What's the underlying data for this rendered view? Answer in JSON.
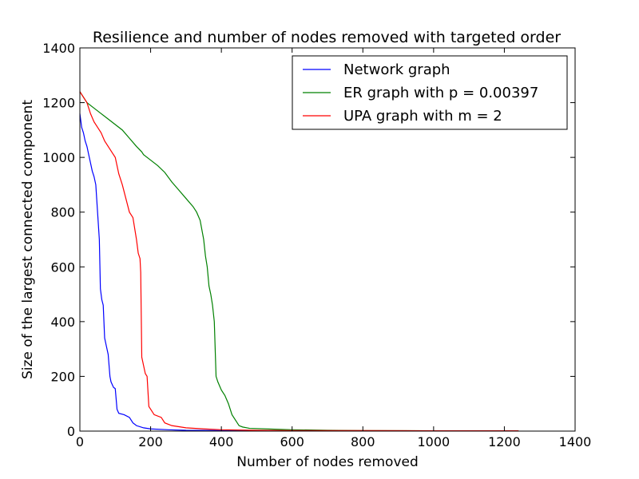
{
  "chart_data": {
    "type": "line",
    "title": "Resilience and number of nodes removed with targeted order",
    "xlabel": "Number of nodes removed",
    "ylabel": "Size of the largest connected component",
    "xlim": [
      0,
      1400
    ],
    "ylim": [
      0,
      1400
    ],
    "xticks": [
      0,
      200,
      400,
      600,
      800,
      1000,
      1200,
      1400
    ],
    "yticks": [
      0,
      200,
      400,
      600,
      800,
      1000,
      1200,
      1400
    ],
    "xtick_labels": [
      "0",
      "200",
      "400",
      "600",
      "800",
      "1000",
      "1200",
      "1400"
    ],
    "ytick_labels": [
      "0",
      "200",
      "400",
      "600",
      "800",
      "1000",
      "1200",
      "1400"
    ],
    "grid": false,
    "legend_position": "top-right",
    "series": [
      {
        "name": "Network graph",
        "color": "#0000ff",
        "points": [
          [
            0,
            1160
          ],
          [
            2,
            1140
          ],
          [
            5,
            1110
          ],
          [
            10,
            1090
          ],
          [
            15,
            1060
          ],
          [
            20,
            1040
          ],
          [
            25,
            1010
          ],
          [
            30,
            980
          ],
          [
            35,
            950
          ],
          [
            40,
            930
          ],
          [
            45,
            900
          ],
          [
            50,
            800
          ],
          [
            55,
            700
          ],
          [
            58,
            520
          ],
          [
            62,
            480
          ],
          [
            66,
            460
          ],
          [
            68,
            400
          ],
          [
            70,
            340
          ],
          [
            75,
            310
          ],
          [
            80,
            280
          ],
          [
            85,
            200
          ],
          [
            88,
            180
          ],
          [
            95,
            160
          ],
          [
            100,
            155
          ],
          [
            105,
            80
          ],
          [
            110,
            65
          ],
          [
            125,
            60
          ],
          [
            140,
            50
          ],
          [
            150,
            30
          ],
          [
            160,
            20
          ],
          [
            180,
            12
          ],
          [
            200,
            8
          ],
          [
            250,
            5
          ],
          [
            300,
            3
          ],
          [
            400,
            2
          ],
          [
            600,
            1
          ],
          [
            800,
            1
          ],
          [
            1000,
            1
          ],
          [
            1240,
            1
          ]
        ]
      },
      {
        "name": "ER graph with p = 0.00397",
        "color": "#008000",
        "points": [
          [
            0,
            1240
          ],
          [
            10,
            1220
          ],
          [
            20,
            1200
          ],
          [
            40,
            1180
          ],
          [
            60,
            1160
          ],
          [
            80,
            1140
          ],
          [
            100,
            1120
          ],
          [
            120,
            1100
          ],
          [
            140,
            1070
          ],
          [
            160,
            1040
          ],
          [
            175,
            1020
          ],
          [
            180,
            1010
          ],
          [
            200,
            990
          ],
          [
            220,
            970
          ],
          [
            240,
            945
          ],
          [
            260,
            910
          ],
          [
            280,
            880
          ],
          [
            300,
            850
          ],
          [
            320,
            820
          ],
          [
            330,
            800
          ],
          [
            340,
            770
          ],
          [
            350,
            700
          ],
          [
            355,
            640
          ],
          [
            360,
            600
          ],
          [
            365,
            530
          ],
          [
            370,
            500
          ],
          [
            375,
            460
          ],
          [
            380,
            400
          ],
          [
            385,
            200
          ],
          [
            390,
            180
          ],
          [
            400,
            150
          ],
          [
            410,
            130
          ],
          [
            420,
            100
          ],
          [
            425,
            80
          ],
          [
            430,
            60
          ],
          [
            440,
            40
          ],
          [
            450,
            20
          ],
          [
            460,
            15
          ],
          [
            480,
            10
          ],
          [
            550,
            7
          ],
          [
            600,
            5
          ],
          [
            700,
            3
          ],
          [
            800,
            2
          ],
          [
            1000,
            1
          ],
          [
            1240,
            1
          ]
        ]
      },
      {
        "name": "UPA graph with m = 2",
        "color": "#ff0000",
        "points": [
          [
            0,
            1240
          ],
          [
            10,
            1220
          ],
          [
            20,
            1200
          ],
          [
            30,
            1160
          ],
          [
            40,
            1130
          ],
          [
            50,
            1110
          ],
          [
            60,
            1090
          ],
          [
            70,
            1060
          ],
          [
            80,
            1040
          ],
          [
            90,
            1020
          ],
          [
            100,
            1000
          ],
          [
            110,
            940
          ],
          [
            120,
            900
          ],
          [
            130,
            850
          ],
          [
            140,
            800
          ],
          [
            150,
            780
          ],
          [
            160,
            700
          ],
          [
            165,
            650
          ],
          [
            170,
            630
          ],
          [
            172,
            580
          ],
          [
            175,
            270
          ],
          [
            180,
            240
          ],
          [
            185,
            210
          ],
          [
            190,
            200
          ],
          [
            195,
            90
          ],
          [
            200,
            80
          ],
          [
            210,
            60
          ],
          [
            230,
            50
          ],
          [
            240,
            30
          ],
          [
            260,
            20
          ],
          [
            300,
            12
          ],
          [
            350,
            8
          ],
          [
            400,
            5
          ],
          [
            500,
            3
          ],
          [
            600,
            2
          ],
          [
            800,
            2
          ],
          [
            1000,
            1
          ],
          [
            1240,
            1
          ]
        ]
      }
    ]
  }
}
